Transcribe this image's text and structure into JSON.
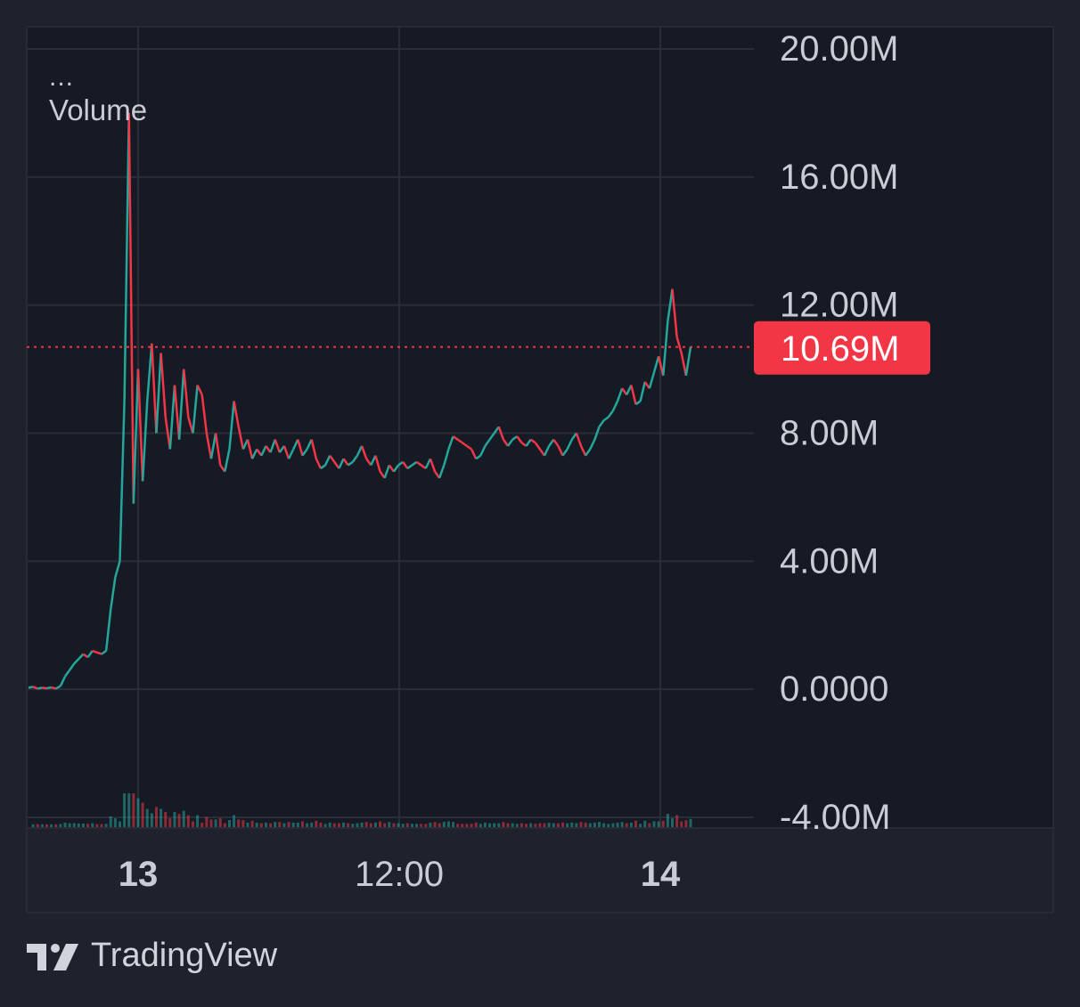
{
  "legend": {
    "menu_label": "...",
    "title": "Volume"
  },
  "brand": {
    "name": "TradingView",
    "logo_icon": "tradingview-logo-icon"
  },
  "colors": {
    "background": "#1f222d",
    "pane": "#161a25",
    "grid": "#2a2e39",
    "up": "#26a69a",
    "down": "#f23645",
    "axis_text": "#c9ccd4"
  },
  "chart_data": {
    "type": "line",
    "title": "Volume",
    "xlabel": "",
    "ylabel": "",
    "x_ticks": [
      {
        "label": "13",
        "bold": true
      },
      {
        "label": "12:00",
        "bold": false
      },
      {
        "label": "14",
        "bold": true
      }
    ],
    "y_ticks": [
      "20.00M",
      "16.00M",
      "12.00M",
      "8.00M",
      "4.00M",
      "0.0000",
      "-4.00M"
    ],
    "ylim": [
      -4000000,
      20000000
    ],
    "grid": true,
    "last_value": 10690000,
    "last_value_label": "10.69M",
    "series": [
      {
        "values": [
          0.05,
          0.08,
          0.02,
          0.05,
          0.03,
          0.06,
          0.02,
          0.1,
          0.4,
          0.6,
          0.8,
          0.95,
          1.1,
          1.0,
          1.2,
          1.15,
          1.1,
          1.2,
          2.5,
          3.5,
          4.0,
          9.0,
          18.0,
          5.8,
          10.0,
          6.5,
          9.0,
          10.8,
          8.0,
          10.5,
          8.5,
          7.5,
          9.5,
          7.8,
          10.0,
          8.5,
          8.0,
          9.5,
          9.2,
          8.0,
          7.2,
          8.0,
          7.0,
          6.8,
          7.5,
          9.0,
          8.2,
          7.5,
          7.8,
          7.2,
          7.5,
          7.3,
          7.6,
          7.4,
          7.8,
          7.4,
          7.6,
          7.2,
          7.5,
          7.8,
          7.3,
          7.5,
          7.8,
          7.2,
          6.9,
          7.0,
          7.3,
          7.1,
          6.9,
          7.2,
          7.0,
          7.1,
          7.3,
          7.6,
          7.2,
          7.0,
          7.3,
          6.8,
          6.6,
          7.0,
          6.8,
          7.0,
          7.1,
          6.9,
          7.0,
          7.1,
          7.0,
          6.9,
          7.2,
          6.8,
          6.6,
          7.0,
          7.5,
          7.9,
          7.8,
          7.7,
          7.6,
          7.5,
          7.2,
          7.3,
          7.6,
          7.8,
          8.0,
          8.2,
          7.8,
          7.6,
          7.8,
          7.9,
          7.7,
          7.6,
          7.8,
          7.7,
          7.5,
          7.3,
          7.6,
          7.8,
          7.6,
          7.3,
          7.5,
          7.8,
          8.0,
          7.6,
          7.3,
          7.5,
          7.8,
          8.2,
          8.4,
          8.5,
          8.7,
          9.0,
          9.4,
          9.2,
          9.5,
          8.9,
          9.0,
          9.6,
          9.4,
          9.9,
          10.4,
          9.8,
          11.5,
          12.5,
          11.0,
          10.5,
          9.8,
          10.69
        ]
      }
    ]
  }
}
